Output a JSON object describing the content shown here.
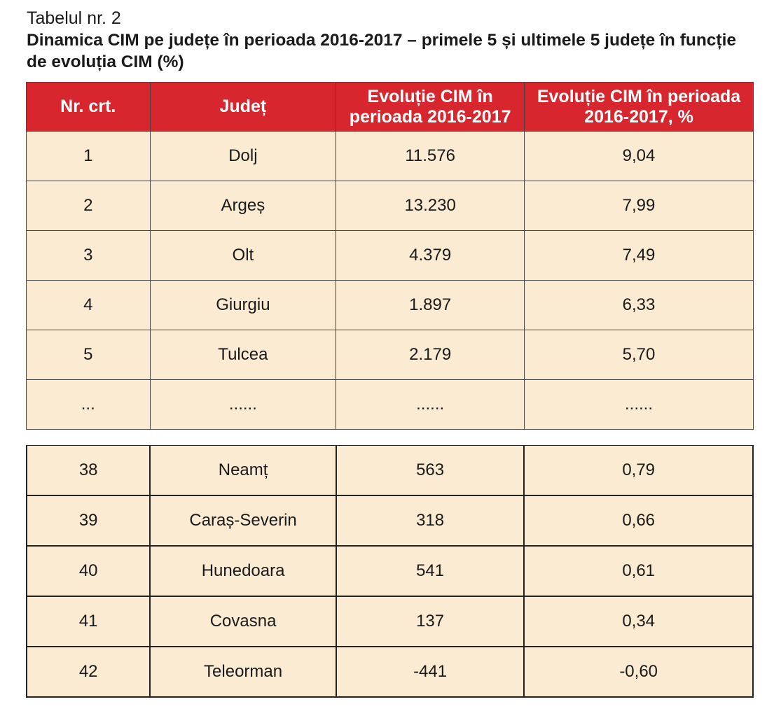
{
  "label": "Tabelul nr. 2",
  "title": "Dinamica CIM pe județe în perioada 2016-2017 – primele 5 și ultimele 5 județe în funcție de evoluția CIM (%)",
  "headers": [
    "Nr. crt.",
    "Județ",
    "Evoluție CIM în perioada 2016-2017",
    "Evoluție CIM în perioada 2016-2017, %"
  ],
  "top_rows": [
    [
      "1",
      "Dolj",
      "11.576",
      "9,04"
    ],
    [
      "2",
      "Argeș",
      "13.230",
      "7,99"
    ],
    [
      "3",
      "Olt",
      "4.379",
      "7,49"
    ],
    [
      "4",
      "Giurgiu",
      "1.897",
      "6,33"
    ],
    [
      "5",
      "Tulcea",
      "2.179",
      "5,70"
    ],
    [
      "...",
      "......",
      "......",
      "......"
    ]
  ],
  "bottom_rows": [
    [
      "38",
      "Neamț",
      "563",
      "0,79"
    ],
    [
      "39",
      "Caraș-Severin",
      "318",
      "0,66"
    ],
    [
      "40",
      "Hunedoara",
      "541",
      "0,61"
    ],
    [
      "41",
      "Covasna",
      "137",
      "0,34"
    ],
    [
      "42",
      "Teleorman",
      "-441",
      "-0,60"
    ]
  ]
}
